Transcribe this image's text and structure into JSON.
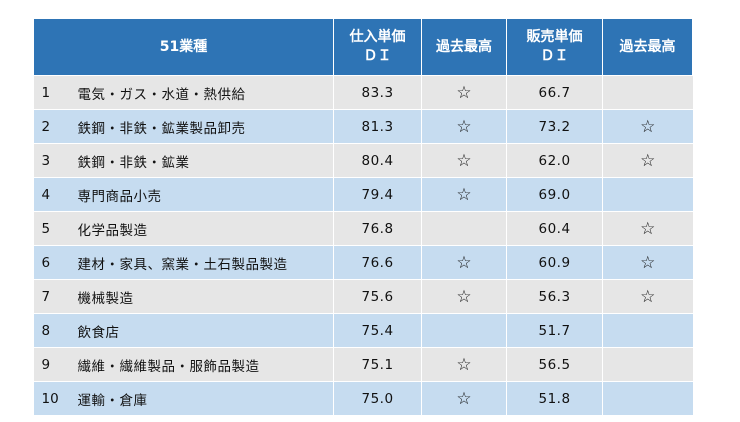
{
  "header": {
    "industry": "51業種",
    "purchase_title": "仕入単価",
    "purchase_sub": "ＤＩ",
    "purchase_record": "過去最高",
    "sales_title": "販売単価",
    "sales_sub": "ＤＩ",
    "sales_record": "過去最高"
  },
  "rows": [
    {
      "rank": "1",
      "name": "電気・ガス・水道・熱供給",
      "purchase": "83.3",
      "purchase_star": "☆",
      "sales": "66.7",
      "sales_star": ""
    },
    {
      "rank": "2",
      "name": "鉄鋼・非鉄・鉱業製品卸売",
      "purchase": "81.3",
      "purchase_star": "☆",
      "sales": "73.2",
      "sales_star": "☆"
    },
    {
      "rank": "3",
      "name": "鉄鋼・非鉄・鉱業",
      "purchase": "80.4",
      "purchase_star": "☆",
      "sales": "62.0",
      "sales_star": "☆"
    },
    {
      "rank": "4",
      "name": "専門商品小売",
      "purchase": "79.4",
      "purchase_star": "☆",
      "sales": "69.0",
      "sales_star": ""
    },
    {
      "rank": "5",
      "name": "化学品製造",
      "purchase": "76.8",
      "purchase_star": "",
      "sales": "60.4",
      "sales_star": "☆"
    },
    {
      "rank": "6",
      "name": "建材・家具、窯業・土石製品製造",
      "purchase": "76.6",
      "purchase_star": "☆",
      "sales": "60.9",
      "sales_star": "☆"
    },
    {
      "rank": "7",
      "name": "機械製造",
      "purchase": "75.6",
      "purchase_star": "☆",
      "sales": "56.3",
      "sales_star": "☆"
    },
    {
      "rank": "8",
      "name": "飲食店",
      "purchase": "75.4",
      "purchase_star": "",
      "sales": "51.7",
      "sales_star": ""
    },
    {
      "rank": "9",
      "name": "繊維・繊維製品・服飾品製造",
      "purchase": "75.1",
      "purchase_star": "☆",
      "sales": "56.5",
      "sales_star": ""
    },
    {
      "rank": "10",
      "name": "運輸・倉庫",
      "purchase": "75.0",
      "purchase_star": "☆",
      "sales": "51.8",
      "sales_star": ""
    }
  ]
}
